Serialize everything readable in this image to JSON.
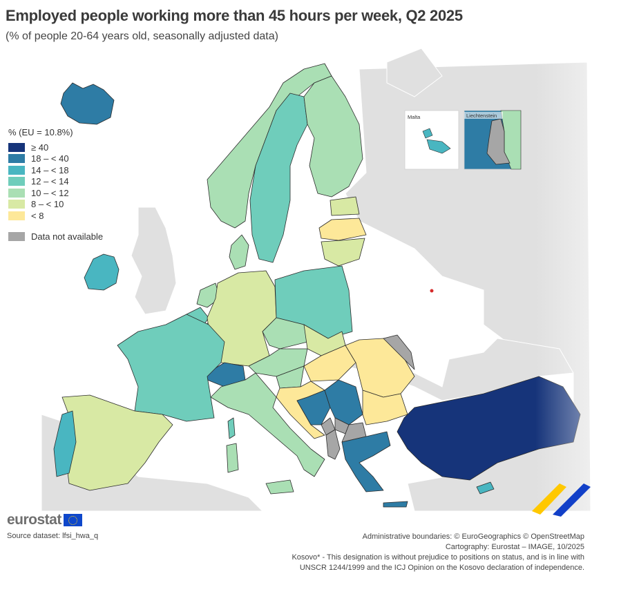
{
  "title": "Employed people working more than 45 hours per week, Q2 2025",
  "subtitle": "(% of people 20-64 years old, seasonally adjusted data)",
  "legend": {
    "title": "% (EU = 10.8%)",
    "classes": [
      {
        "label": "≥ 40",
        "color": "#16347a"
      },
      {
        "label": "18 – < 40",
        "color": "#2e7ca5"
      },
      {
        "label": "14 – < 18",
        "color": "#49b6c1"
      },
      {
        "label": "12 – < 14",
        "color": "#6fcdbb"
      },
      {
        "label": "10 – < 12",
        "color": "#aadfb4"
      },
      {
        "label": "8 – < 10",
        "color": "#d8e9a4"
      },
      {
        "label": "< 8",
        "color": "#fde899"
      }
    ],
    "not_available": {
      "label": "Data not available",
      "color": "#a6a6a6"
    }
  },
  "insets": {
    "malta": "Malta",
    "liechtenstein": "Liechtenstein"
  },
  "logo": {
    "text": "eurostat"
  },
  "source": "Source dataset: lfsi_hwa_q",
  "credits": {
    "boundaries": "Administrative boundaries: © EuroGeographics © OpenStreetMap",
    "cartography": "Cartography: Eurostat – IMAGE, 10/2025",
    "kosovo_line1": "Kosovo* - This designation is without prejudice to positions on status, and is in line with",
    "kosovo_line2": "UNSCR 1244/1999 and the ICJ Opinion on the Kosovo declaration of independence."
  },
  "colors": {
    "non_eu": "#e0e0e0",
    "sea": "#ffffff",
    "border": "#2b2b2b"
  }
}
